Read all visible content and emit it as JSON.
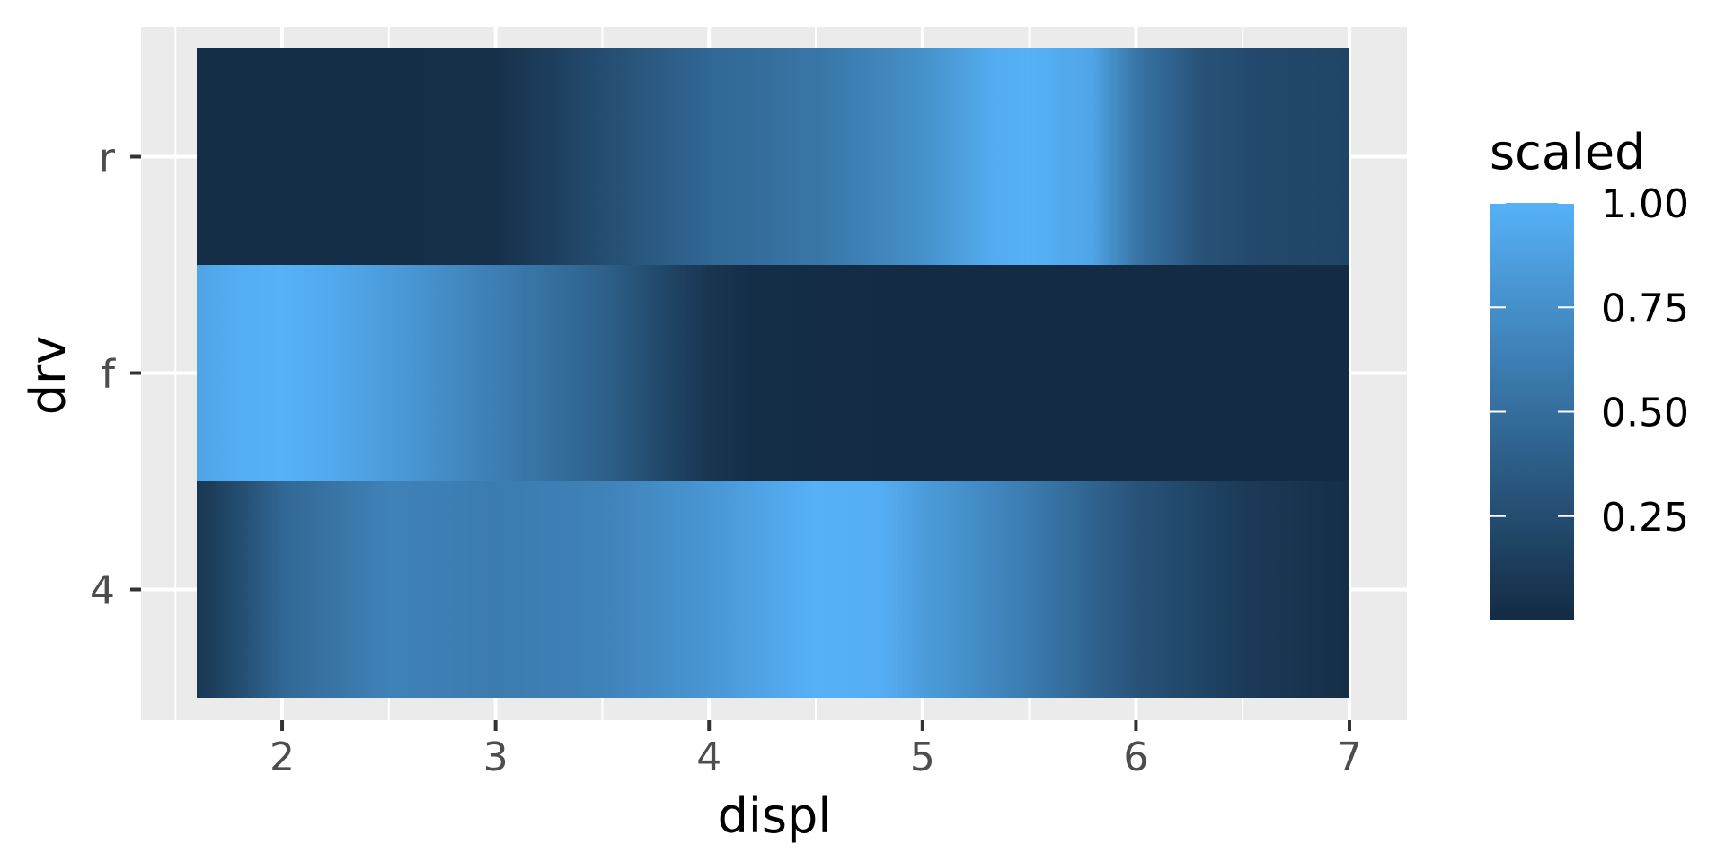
{
  "chart_data": {
    "type": "heatmap",
    "title": "",
    "xlabel": "displ",
    "ylabel": "drv",
    "xlim": [
      1.6,
      7.0
    ],
    "x_ticks": [
      2,
      3,
      4,
      5,
      6,
      7
    ],
    "y_categories": [
      "4",
      "f",
      "r"
    ],
    "grid": true,
    "legend": {
      "title": "scaled",
      "position": "right",
      "range": [
        0.0,
        1.0
      ],
      "ticks": [
        0.25,
        0.5,
        0.75,
        1.0
      ],
      "tick_labels": [
        "0.25",
        "0.50",
        "0.75",
        "1.00"
      ],
      "low_color": "#132B43",
      "high_color": "#56B1F7"
    },
    "series": [
      {
        "category": "r",
        "x": [
          1.6,
          2.0,
          2.5,
          3.0,
          3.5,
          4.0,
          4.5,
          5.0,
          5.3,
          5.5,
          5.8,
          6.0,
          6.3,
          6.6,
          7.0
        ],
        "values": [
          0.02,
          0.02,
          0.02,
          0.04,
          0.25,
          0.45,
          0.55,
          0.75,
          0.95,
          1.0,
          0.9,
          0.55,
          0.3,
          0.22,
          0.2
        ]
      },
      {
        "category": "f",
        "x": [
          1.6,
          1.8,
          2.0,
          2.3,
          2.6,
          3.0,
          3.5,
          3.8,
          4.0,
          4.2,
          5.0,
          6.0,
          7.0
        ],
        "values": [
          0.9,
          0.98,
          1.0,
          0.92,
          0.8,
          0.62,
          0.4,
          0.2,
          0.08,
          0.02,
          0.0,
          0.0,
          0.0
        ]
      },
      {
        "category": "4",
        "x": [
          1.6,
          1.8,
          2.0,
          2.5,
          3.0,
          3.5,
          4.0,
          4.5,
          4.8,
          5.0,
          5.5,
          6.0,
          6.5,
          7.0
        ],
        "values": [
          0.08,
          0.25,
          0.45,
          0.65,
          0.6,
          0.65,
          0.8,
          1.0,
          0.98,
          0.85,
          0.6,
          0.3,
          0.12,
          0.02
        ]
      }
    ]
  }
}
